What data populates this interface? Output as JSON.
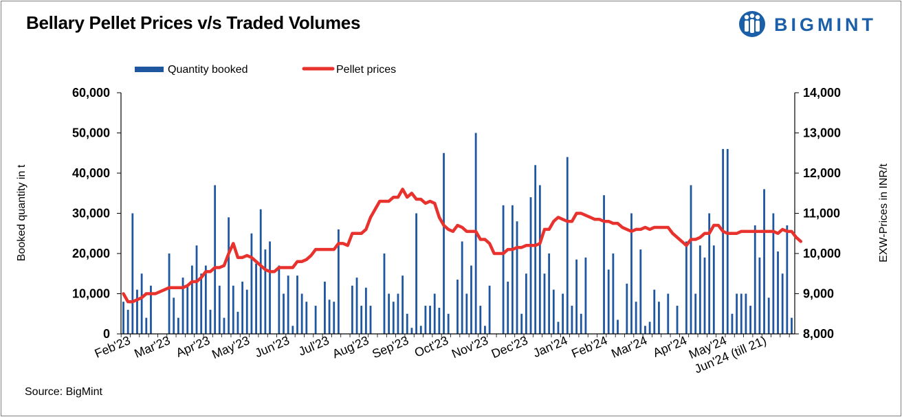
{
  "title": "Bellary Pellet Prices v/s Traded Volumes",
  "source": "Source: BigMint",
  "logo": {
    "text": "BIGMINT",
    "color": "#1b5fa8",
    "icon": "bigmint-logo-icon"
  },
  "chart_data": {
    "type": "bar+line",
    "title": "Bellary Pellet Prices v/s Traded Volumes",
    "y_left": {
      "label": "Booked quantity in t",
      "ticks": [
        "0",
        "10,000",
        "20,000",
        "30,000",
        "40,000",
        "50,000",
        "60,000"
      ],
      "range": [
        0,
        60000
      ]
    },
    "y_right": {
      "label": "EXW-Prices in INR/t",
      "ticks": [
        "8,000",
        "9,000",
        "10,000",
        "11,000",
        "12,000",
        "13,000",
        "14,000"
      ],
      "range": [
        8000,
        14000
      ]
    },
    "x_ticks": [
      "Feb'23",
      "Mar'23",
      "Apr'23",
      "May'23",
      "Jun'23",
      "Jul'23",
      "Aug'23",
      "Sep'23",
      "Oct'23",
      "Nov'23",
      "Dec'23",
      "Jan'24",
      "Feb'24",
      "Mar'24",
      "Apr'24",
      "May'24",
      "Jun'24 (till 21)"
    ],
    "grid": false,
    "legend_position": "top-left",
    "series": [
      {
        "name": "Quantity booked",
        "type": "bar",
        "axis": "left",
        "color": "#1f56a0",
        "values": [
          8000,
          6000,
          30000,
          11000,
          15000,
          4000,
          12000,
          0,
          0,
          0,
          20000,
          9000,
          4000,
          14000,
          12000,
          17000,
          22000,
          15000,
          17000,
          6000,
          37000,
          12000,
          4000,
          29000,
          12000,
          5500,
          13000,
          11000,
          25000,
          17500,
          31000,
          21000,
          23000,
          0,
          17000,
          10000,
          14500,
          2000,
          14500,
          10000,
          8000,
          0,
          7000,
          0,
          13000,
          8500,
          8000,
          26000,
          0,
          0,
          12000,
          14000,
          7000,
          11500,
          7000,
          0,
          0,
          20000,
          10000,
          8000,
          10000,
          14500,
          5000,
          1500,
          30000,
          2000,
          7000,
          7000,
          10000,
          6500,
          45000,
          5000,
          0,
          13500,
          23000,
          10000,
          17000,
          50000,
          7000,
          2000,
          12000,
          0,
          0,
          32000,
          13000,
          32000,
          28000,
          5000,
          15000,
          34000,
          42000,
          37000,
          15000,
          20000,
          11000,
          3000,
          10000,
          44000,
          7000,
          18500,
          5000,
          19000,
          0,
          0,
          0,
          34500,
          16000,
          20000,
          3500,
          0,
          12500,
          30000,
          8000,
          21000,
          2000,
          3000,
          11000,
          8000,
          0,
          10000,
          0,
          7000,
          0,
          23000,
          37000,
          10000,
          22000,
          19000,
          30000,
          22000,
          0,
          46000,
          46000,
          5000,
          10000,
          10000,
          10000,
          7000,
          27000,
          19000,
          36000,
          9000,
          30000,
          20500,
          15000,
          27000,
          4000
        ]
      },
      {
        "name": "Pellet prices",
        "type": "line",
        "axis": "right",
        "color": "#e8322d",
        "values": [
          9000,
          8800,
          8800,
          8850,
          8900,
          9000,
          9000,
          9000,
          9050,
          9100,
          9150,
          9150,
          9150,
          9150,
          9200,
          9300,
          9300,
          9400,
          9550,
          9550,
          9650,
          9650,
          9700,
          10000,
          10250,
          9900,
          9900,
          9950,
          9900,
          9800,
          9700,
          9600,
          9550,
          9550,
          9650,
          9650,
          9650,
          9650,
          9800,
          9800,
          9850,
          9950,
          10100,
          10100,
          10100,
          10100,
          10100,
          10250,
          10250,
          10200,
          10500,
          10500,
          10500,
          10600,
          10900,
          11100,
          11300,
          11300,
          11300,
          11400,
          11400,
          11600,
          11400,
          11500,
          11350,
          11350,
          11250,
          11300,
          11250,
          10900,
          10700,
          10600,
          10550,
          10700,
          10650,
          10550,
          10550,
          10550,
          10350,
          10350,
          10250,
          10000,
          10000,
          10000,
          10100,
          10100,
          10150,
          10150,
          10200,
          10200,
          10200,
          10250,
          10600,
          10600,
          10800,
          10900,
          10850,
          10800,
          10800,
          11000,
          11000,
          10950,
          10900,
          10850,
          10850,
          10800,
          10800,
          10750,
          10750,
          10650,
          10600,
          10550,
          10600,
          10600,
          10650,
          10600,
          10650,
          10650,
          10650,
          10650,
          10500,
          10400,
          10300,
          10200,
          10350,
          10350,
          10400,
          10500,
          10500,
          10700,
          10700,
          10550,
          10500,
          10500,
          10500,
          10550,
          10550,
          10550,
          10550,
          10550,
          10550,
          10550,
          10550,
          10500,
          10600,
          10550,
          10550,
          10400,
          10300
        ]
      }
    ]
  }
}
